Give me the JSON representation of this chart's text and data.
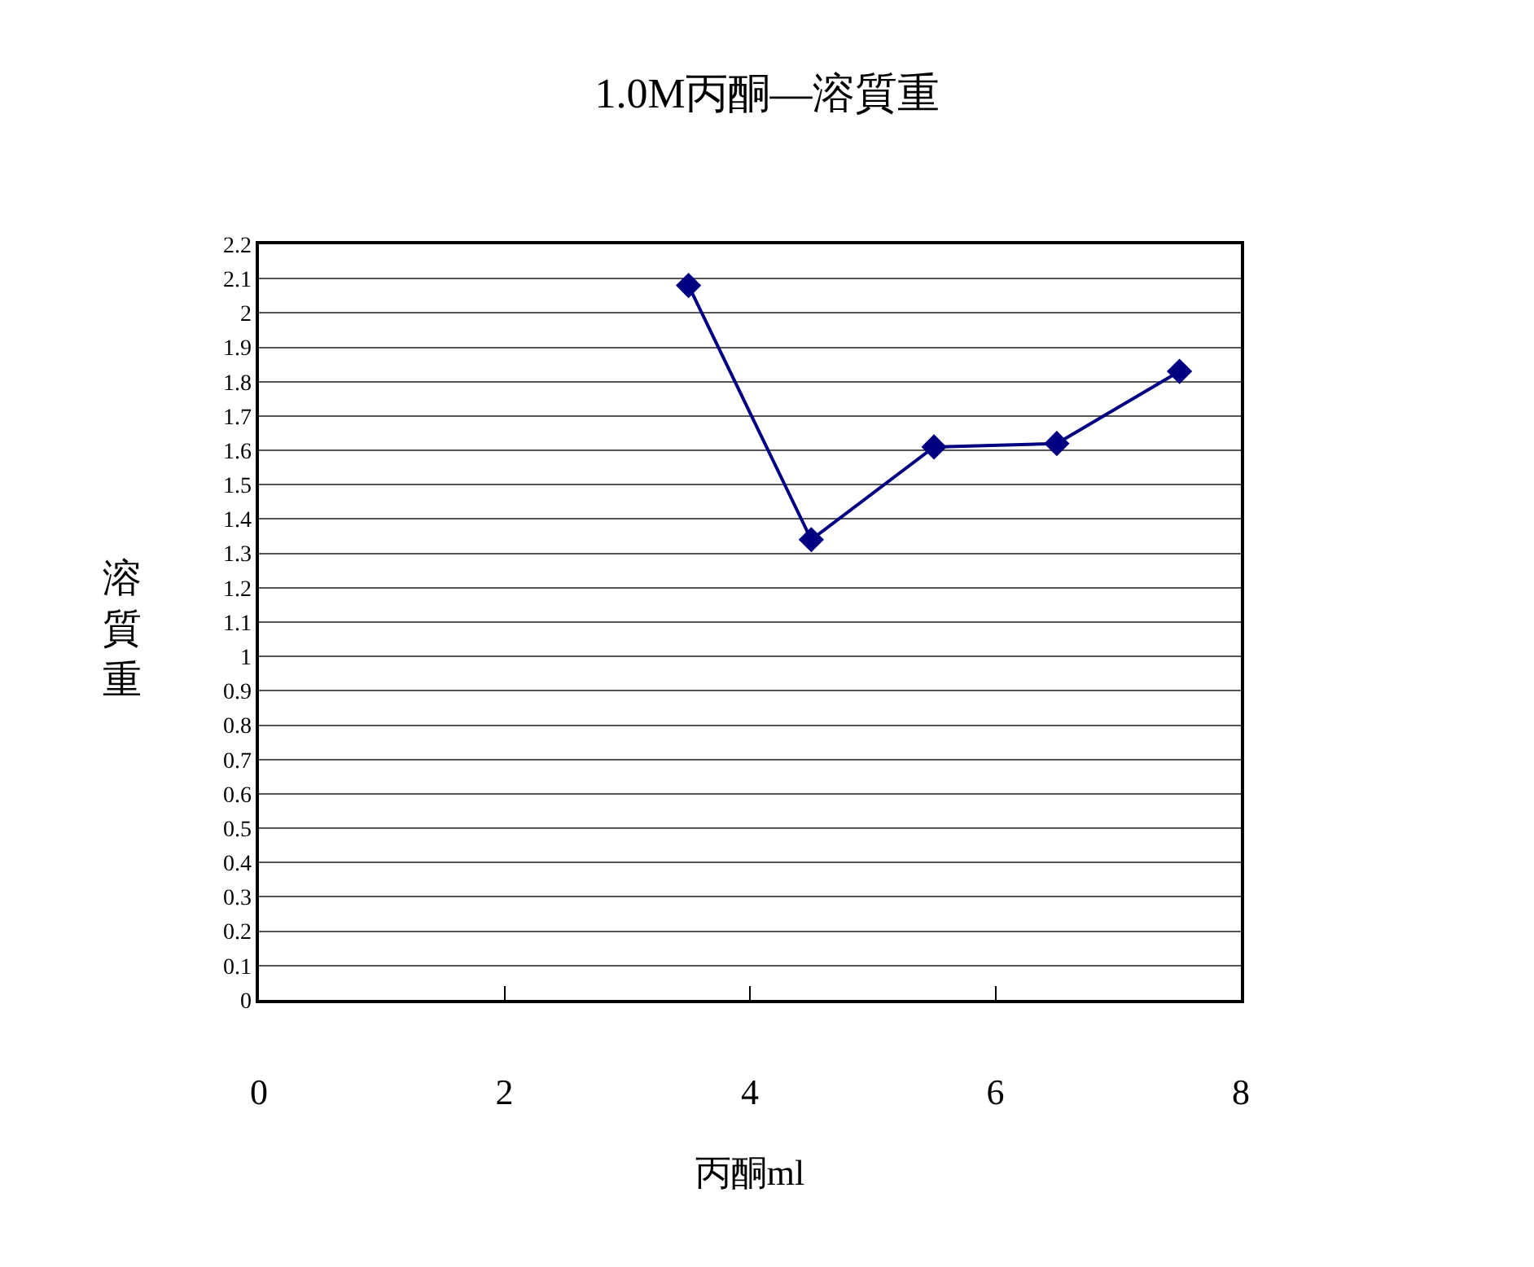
{
  "chart_data": {
    "type": "line",
    "title": "1.0M丙酮—溶質重",
    "xlabel": "丙酮ml",
    "ylabel": "溶質重",
    "x": [
      3.5,
      4.5,
      5.5,
      6.5,
      7.5
    ],
    "series": [
      {
        "color": "#000080",
        "values": [
          2.08,
          1.34,
          1.61,
          1.62,
          1.83
        ]
      }
    ],
    "xlim": [
      0,
      8
    ],
    "xticks": [
      0,
      2,
      4,
      6,
      8
    ],
    "ylim": [
      0,
      2.2
    ],
    "yticks": [
      0,
      0.1,
      0.2,
      0.3,
      0.4,
      0.5,
      0.6,
      0.7,
      0.8,
      0.9,
      1,
      1.1,
      1.2,
      1.3,
      1.4,
      1.5,
      1.6,
      1.7,
      1.8,
      1.9,
      2,
      2.1,
      2.2
    ],
    "grid": "y",
    "marker": "diamond",
    "line_style": "solid"
  }
}
